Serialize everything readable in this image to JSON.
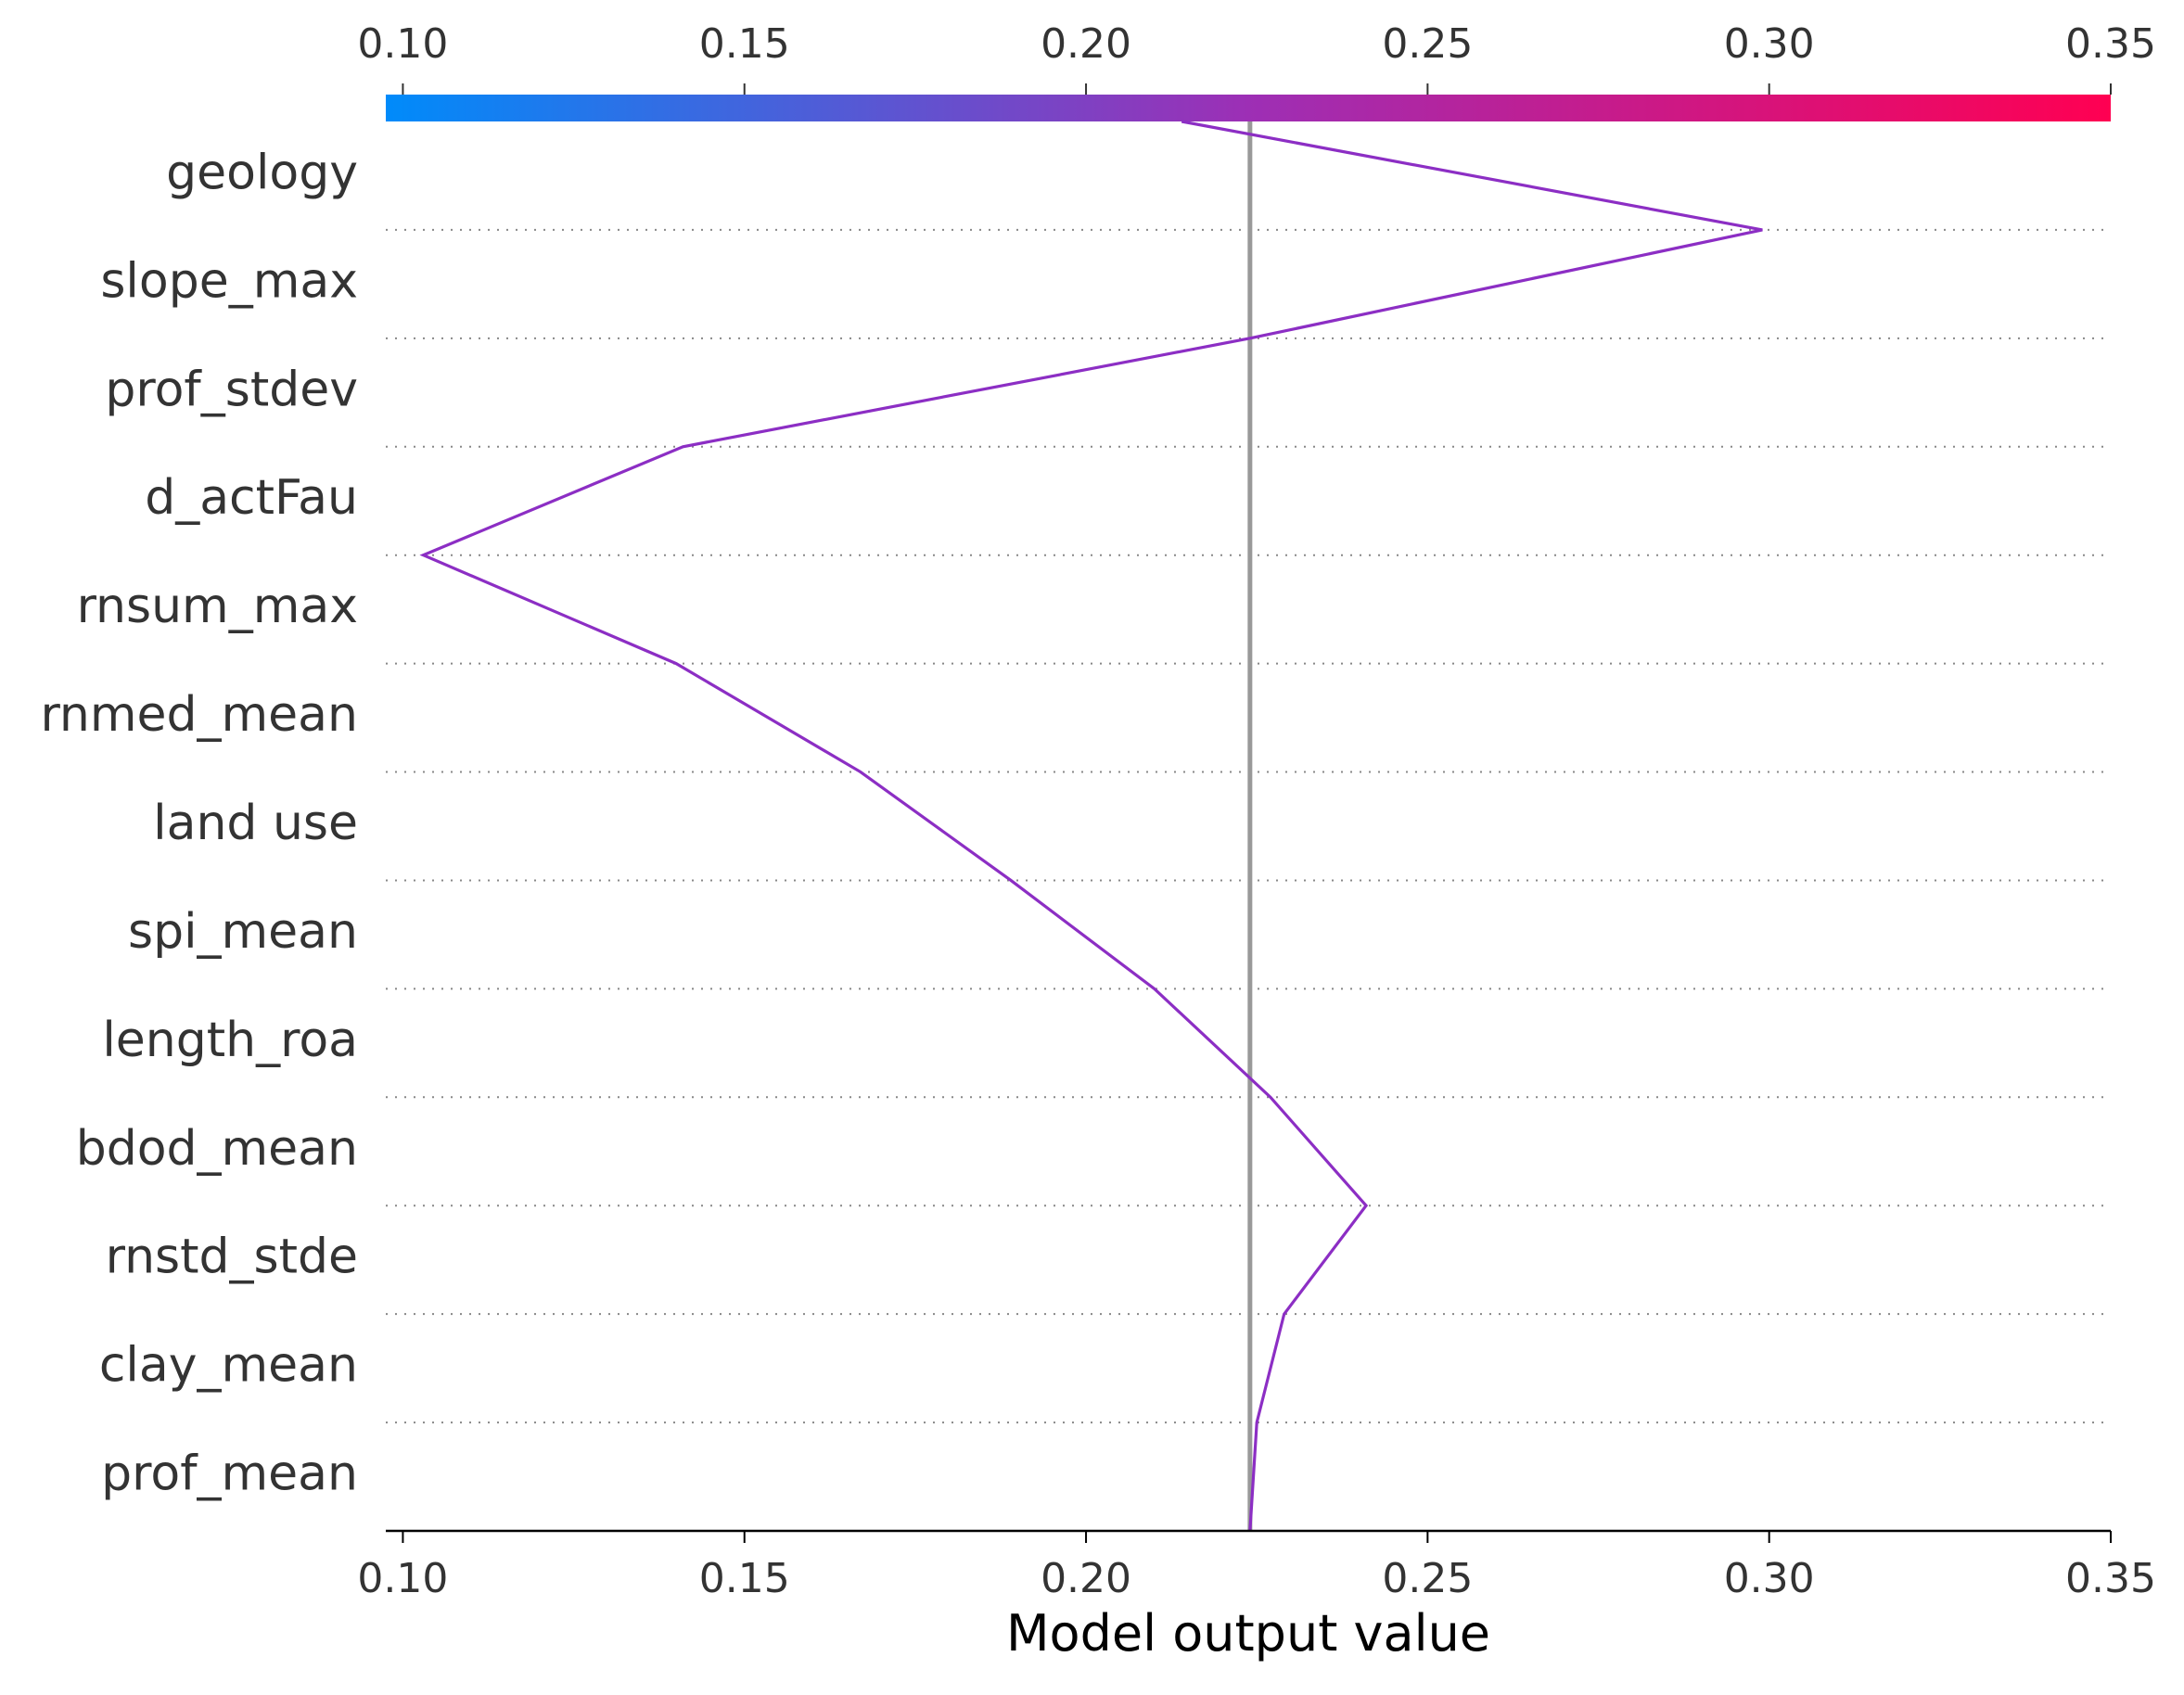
{
  "chart_data": {
    "type": "line",
    "plot_kind": "decision_plot",
    "xlabel": "Model output value",
    "xlim": [
      0.0975,
      0.35
    ],
    "x_ticks": [
      "0.10",
      "0.15",
      "0.20",
      "0.25",
      "0.30",
      "0.35"
    ],
    "x_tick_values": [
      0.1,
      0.15,
      0.2,
      0.25,
      0.3,
      0.35
    ],
    "base_value": 0.224,
    "features": [
      "geology",
      "slope_max",
      "prof_stdev",
      "d_actFau",
      "rnsum_max",
      "rnmed_mean",
      "land use",
      "spi_mean",
      "length_roa",
      "bdod_mean",
      "rnstd_stde",
      "clay_mean",
      "prof_mean"
    ],
    "series": [
      {
        "points": [
          {
            "feature_boundary": "top",
            "x": 0.214
          },
          {
            "feature_boundary": "geology/slope_max",
            "x": 0.299
          },
          {
            "feature_boundary": "slope_max/prof_stdev",
            "x": 0.224
          },
          {
            "feature_boundary": "prof_stdev/d_actFau",
            "x": 0.141
          },
          {
            "feature_boundary": "d_actFau/rnsum_max",
            "x": 0.103
          },
          {
            "feature_boundary": "rnsum_max/rnmed_mean",
            "x": 0.14
          },
          {
            "feature_boundary": "rnmed_mean/land use",
            "x": 0.167
          },
          {
            "feature_boundary": "land use/spi_mean",
            "x": 0.189
          },
          {
            "feature_boundary": "spi_mean/length_roa",
            "x": 0.21
          },
          {
            "feature_boundary": "length_roa/bdod_mean",
            "x": 0.227
          },
          {
            "feature_boundary": "bdod_mean/rnstd_stde",
            "x": 0.241
          },
          {
            "feature_boundary": "rnstd_stde/clay_mean",
            "x": 0.229
          },
          {
            "feature_boundary": "clay_mean/prof_mean",
            "x": 0.225
          },
          {
            "feature_boundary": "bottom",
            "x": 0.224
          }
        ],
        "color": "#8c2ec4"
      }
    ],
    "colorbar": {
      "colors": [
        "#008bfa",
        "#9d2fb5",
        "#ff0052"
      ],
      "range": [
        0.0975,
        0.35
      ]
    },
    "colors": {
      "base_line": "#999999",
      "grid": "#888888",
      "axis": "#000000",
      "text": "#333333"
    },
    "grid": true,
    "legend": "none"
  }
}
